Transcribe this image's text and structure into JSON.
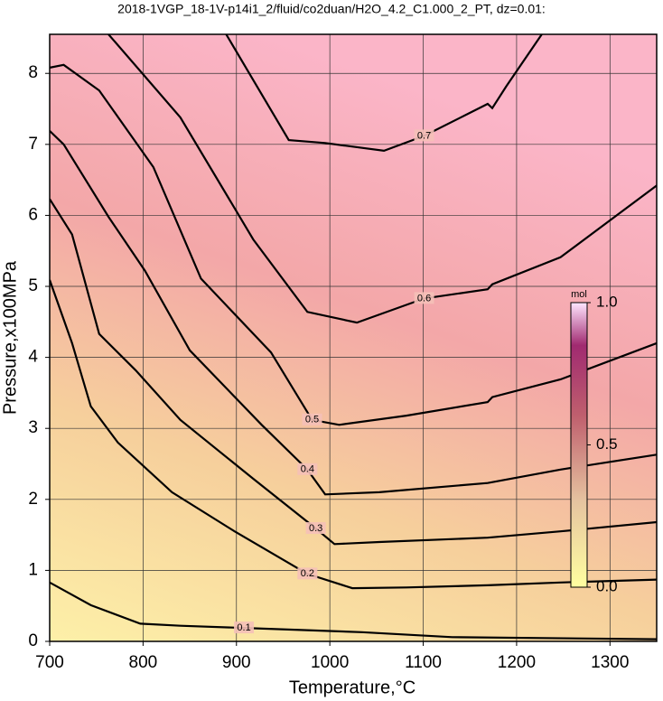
{
  "chart_data": {
    "type": "contour",
    "title": "2018-1VGP_18-1V-p14i1_2/fluid/co2duan/H2O_4.2_C1.000_2_PT, dz=0.01:",
    "x_label": "Temperature,°C",
    "y_label": "Pressure,x100MPa",
    "xlim": [
      700,
      1350
    ],
    "ylim": [
      0,
      8.55
    ],
    "xticks": [
      700,
      800,
      900,
      1000,
      1100,
      1200,
      1300
    ],
    "yticks": [
      0,
      1,
      2,
      3,
      4,
      5,
      6,
      7,
      8
    ],
    "grid": true,
    "line_color": "#000000",
    "series": [
      {
        "name": "0.7",
        "x": [
          889,
          956,
          995,
          1058,
          1101,
          1169,
          1174,
          1189,
          1227
        ],
        "y": [
          8.55,
          7.06,
          7.02,
          6.91,
          7.12,
          7.57,
          7.51,
          7.82,
          8.55
        ]
      },
      {
        "name": "0.6",
        "x": [
          763,
          840,
          918,
          976,
          1029,
          1101,
          1169,
          1174,
          1247,
          1350
        ],
        "y": [
          8.55,
          7.38,
          5.66,
          4.64,
          4.49,
          4.83,
          4.96,
          5.03,
          5.41,
          6.42
        ]
      },
      {
        "name": "0.5",
        "x": [
          700,
          715,
          753,
          811,
          862,
          937,
          981,
          1010,
          1082,
          1169,
          1174,
          1247,
          1350
        ],
        "y": [
          8.08,
          8.12,
          7.76,
          6.68,
          5.11,
          4.07,
          3.12,
          3.05,
          3.18,
          3.37,
          3.44,
          3.69,
          4.2
        ]
      },
      {
        "name": "0.4",
        "x": [
          700,
          715,
          763,
          802,
          850,
          927,
          976,
          995,
          1053,
          1169,
          1247,
          1350
        ],
        "y": [
          7.19,
          7.0,
          5.98,
          5.22,
          4.1,
          3.05,
          2.42,
          2.07,
          2.1,
          2.23,
          2.42,
          2.63
        ]
      },
      {
        "name": "0.3",
        "x": [
          700,
          724,
          753,
          792,
          840,
          918,
          985,
          1005,
          1053,
          1169,
          1247,
          1350
        ],
        "y": [
          6.23,
          5.73,
          4.33,
          3.82,
          3.12,
          2.29,
          1.59,
          1.37,
          1.4,
          1.46,
          1.55,
          1.68
        ]
      },
      {
        "name": "0.2",
        "x": [
          700,
          724,
          744,
          773,
          831,
          898,
          976,
          1024,
          1082,
          1169,
          1247,
          1350
        ],
        "y": [
          5.09,
          4.2,
          3.31,
          2.8,
          2.1,
          1.55,
          0.95,
          0.75,
          0.76,
          0.79,
          0.83,
          0.87
        ]
      },
      {
        "name": "0.1",
        "x": [
          700,
          744,
          797,
          840,
          908,
          1034,
          1131,
          1350
        ],
        "y": [
          0.83,
          0.51,
          0.25,
          0.22,
          0.19,
          0.13,
          0.06,
          0.03
        ]
      }
    ],
    "colorbar": {
      "label": "mol",
      "lim": [
        0,
        1
      ],
      "ticks": [
        {
          "value": 1,
          "label": "1.0"
        },
        {
          "value": 0.5,
          "label": "0.5"
        },
        {
          "value": 0,
          "label": "0.0"
        }
      ]
    }
  }
}
